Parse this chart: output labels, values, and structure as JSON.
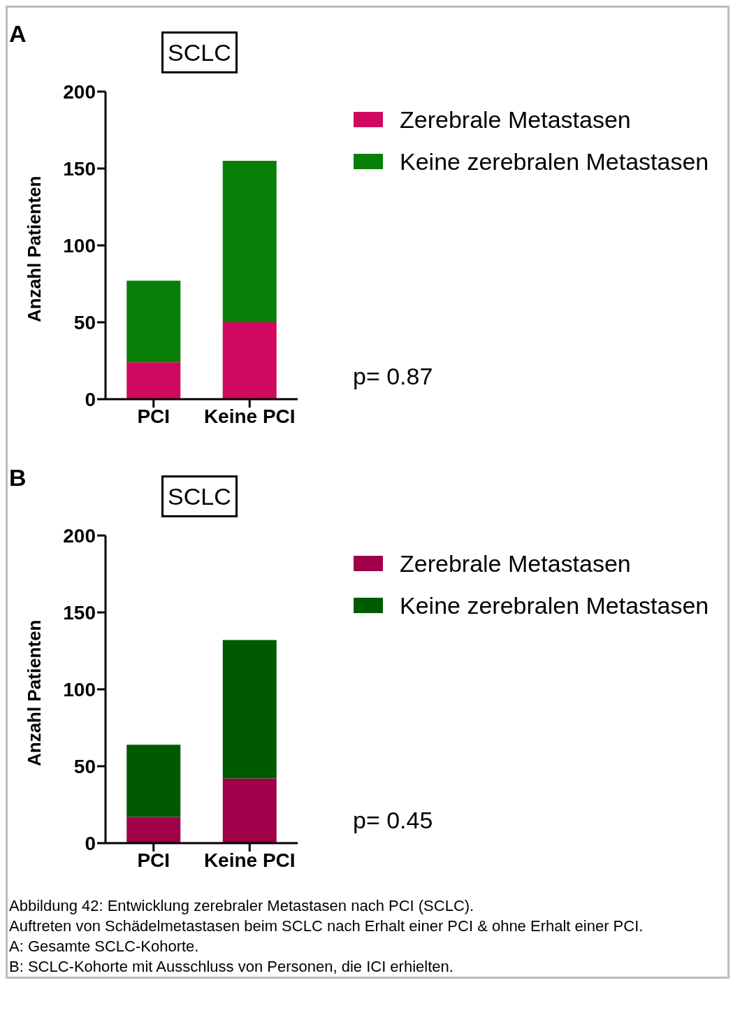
{
  "chart_data": [
    {
      "type": "bar",
      "title": "SCLC",
      "ylabel": "Anzahl Patienten",
      "categories": [
        "PCI",
        "Keine PCI"
      ],
      "stacked": true,
      "legend": "right",
      "ylim": [
        0,
        200
      ],
      "yticks": [
        0,
        50,
        100,
        150,
        200
      ],
      "series": [
        {
          "name": "Zerebrale Metastasen",
          "color": "#d0085f",
          "values": [
            24,
            50
          ]
        },
        {
          "name": "Keine zerebralen Metastasen",
          "color": "#088008",
          "values": [
            53,
            105
          ]
        }
      ],
      "annotations": [
        "A",
        "p= 0.87"
      ]
    },
    {
      "type": "bar",
      "title": "SCLC",
      "ylabel": "Anzahl Patienten",
      "categories": [
        "PCI",
        "Keine PCI"
      ],
      "stacked": true,
      "legend": "right",
      "ylim": [
        0,
        200
      ],
      "yticks": [
        0,
        50,
        100,
        150,
        200
      ],
      "series": [
        {
          "name": "Zerebrale Metastasen",
          "color": "#a0004a",
          "values": [
            17,
            42
          ]
        },
        {
          "name": "Keine zerebralen Metastasen",
          "color": "#005a00",
          "values": [
            47,
            90
          ]
        }
      ],
      "annotations": [
        "B",
        "p= 0.45",
        "Abbildung 42: Entwicklung zerebraler Metastasen nach PCI (SCLC).",
        "Auftreten von Schädelmetastasen beim SCLC nach Erhalt einer PCI & ohne Erhalt einer PCI.",
        "A: Gesamte SCLC-Kohorte.",
        "B: SCLC-Kohorte mit Ausschluss von Personen, die ICI erhielten."
      ]
    }
  ]
}
